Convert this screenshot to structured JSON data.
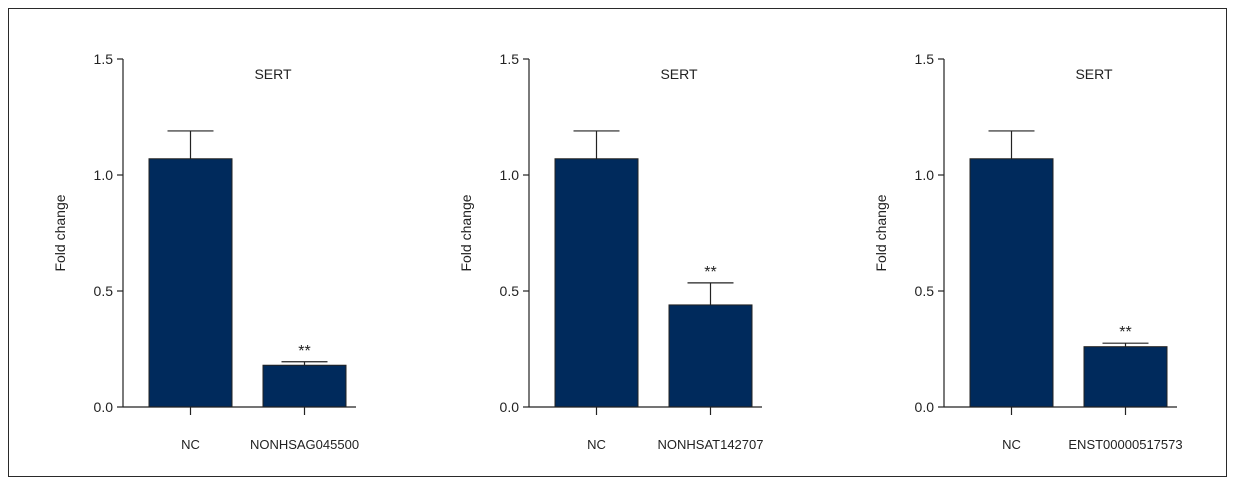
{
  "colors": {
    "bar": "#002a5c",
    "axis": "#222222",
    "background": "#ffffff"
  },
  "chart_data": [
    {
      "type": "bar",
      "title": "SERT",
      "ylabel": "Fold change",
      "xlabel": "",
      "ylim": [
        0,
        1.5
      ],
      "yticks": [
        "0.0",
        "0.5",
        "1.0",
        "1.5"
      ],
      "categories": [
        "NC",
        "NONHSAG045500"
      ],
      "values": [
        1.07,
        0.18
      ],
      "errors": [
        0.12,
        0.015
      ],
      "annotations": [
        "",
        "**"
      ]
    },
    {
      "type": "bar",
      "title": "SERT",
      "ylabel": "Fold change",
      "xlabel": "",
      "ylim": [
        0,
        1.5
      ],
      "yticks": [
        "0.0",
        "0.5",
        "1.0",
        "1.5"
      ],
      "categories": [
        "NC",
        "NONHSAT142707"
      ],
      "values": [
        1.07,
        0.44
      ],
      "errors": [
        0.12,
        0.095
      ],
      "annotations": [
        "",
        "**"
      ]
    },
    {
      "type": "bar",
      "title": "SERT",
      "ylabel": "Fold change",
      "xlabel": "",
      "ylim": [
        0,
        1.5
      ],
      "yticks": [
        "0.0",
        "0.5",
        "1.0",
        "1.5"
      ],
      "categories": [
        "NC",
        "ENST00000517573"
      ],
      "values": [
        1.07,
        0.26
      ],
      "errors": [
        0.12,
        0.015
      ],
      "annotations": [
        "",
        "**"
      ]
    }
  ]
}
